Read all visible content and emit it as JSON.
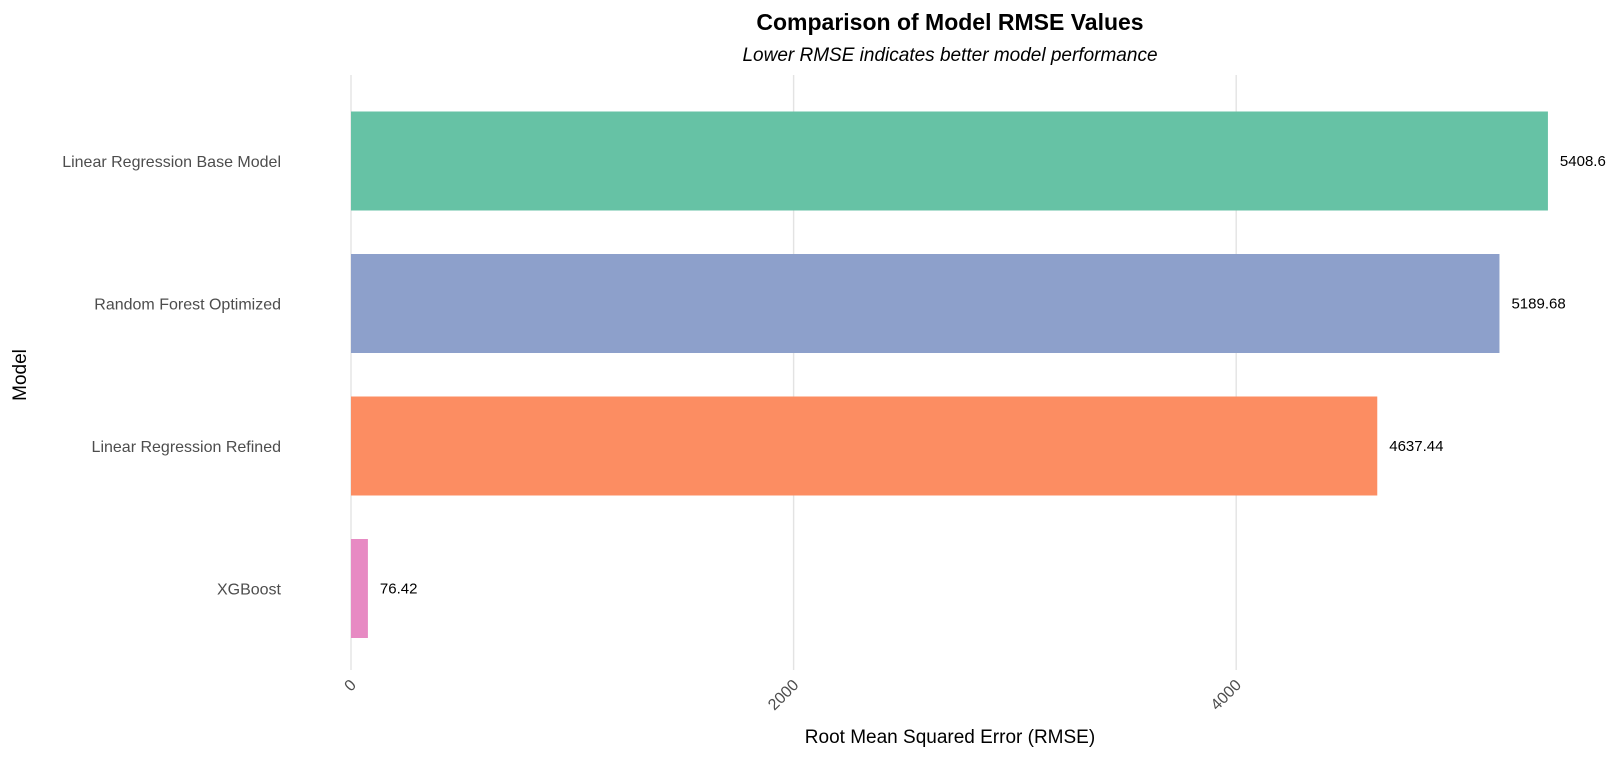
{
  "chart_data": {
    "type": "bar",
    "orientation": "horizontal",
    "title": "Comparison of Model RMSE Values",
    "subtitle": "Lower RMSE indicates better model performance",
    "xlabel": "Root Mean Squared Error (RMSE)",
    "ylabel": "Model",
    "xlim": [
      0,
      5408.6
    ],
    "x_ticks": [
      "0",
      "2000",
      "4000"
    ],
    "x_tick_values": [
      0,
      2000,
      4000
    ],
    "grid": true,
    "legend": "none",
    "categories": [
      "Linear Regression Base Model",
      "Random Forest Optimized",
      "Linear Regression Refined",
      "XGBoost"
    ],
    "values": [
      5408.6,
      5189.68,
      4637.44,
      76.42
    ],
    "labels": [
      "5408.6",
      "5189.68",
      "4637.44",
      "76.42"
    ],
    "colors": [
      "#66c2a5",
      "#8da0cb",
      "#fc8d62",
      "#e78ac3"
    ]
  }
}
